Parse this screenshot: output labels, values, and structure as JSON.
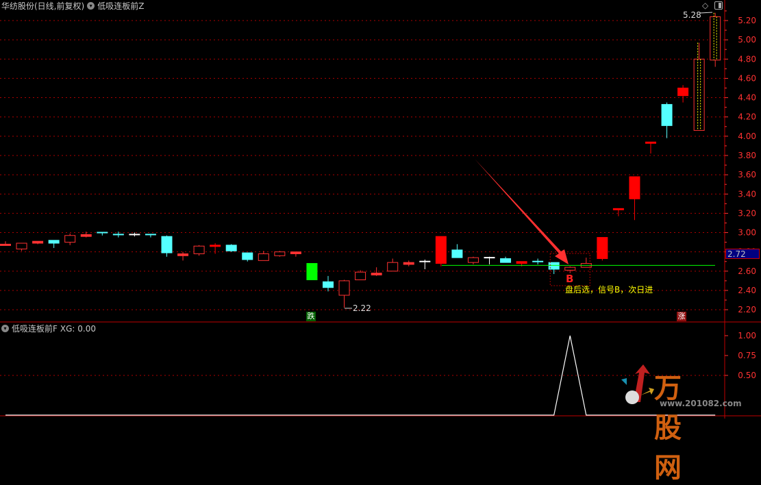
{
  "header": {
    "stock_title": "华纺股份(日线,前复权)",
    "indicator_main": "低吸连板前Z",
    "indicator_sub_label": "低吸连板前F",
    "indicator_sub_value": "XG: 0.00",
    "icons": [
      "diamond-icon",
      "panel-toggle-icon",
      "dropdown-circle-icon"
    ]
  },
  "annotations": {
    "high_label": "5.28",
    "low_label": "2.22",
    "signal_letter": "B",
    "signal_note": "盘后选，信号B，次日进",
    "down_tag": "跌",
    "up_tag": "涨",
    "last_price": "2.72"
  },
  "logo": {
    "name": "万股网",
    "url": "www.201082.com"
  },
  "colors": {
    "up": "#ff3232",
    "down": "#54ffff",
    "flat": "#ffffff",
    "limit_down": "#00ff00",
    "grid": "#b00000",
    "axis_text": "#ff3232",
    "signal_line": "#00ff00",
    "highlight": "#ffff00",
    "last_price_bg": "#000080"
  },
  "chart_data": [
    {
      "type": "candlestick",
      "title": "华纺股份(日线,前复权)",
      "ylim": [
        2.1,
        5.35
      ],
      "yticks": [
        "5.20",
        "5.00",
        "4.80",
        "4.60",
        "4.40",
        "4.20",
        "4.00",
        "3.80",
        "3.60",
        "3.40",
        "3.20",
        "3.00",
        "2.80",
        "2.60",
        "2.40",
        "2.20"
      ],
      "grid": true,
      "candles": [
        {
          "o": 2.88,
          "h": 2.91,
          "l": 2.87,
          "c": 2.88,
          "k": "r"
        },
        {
          "o": 2.83,
          "h": 2.89,
          "l": 2.81,
          "c": 2.89,
          "k": "r"
        },
        {
          "o": 2.89,
          "h": 2.91,
          "l": 2.88,
          "c": 2.91,
          "k": "r"
        },
        {
          "o": 2.92,
          "h": 2.92,
          "l": 2.84,
          "c": 2.89,
          "k": "c"
        },
        {
          "o": 2.9,
          "h": 2.99,
          "l": 2.87,
          "c": 2.97,
          "k": "r"
        },
        {
          "o": 2.96,
          "h": 3.01,
          "l": 2.95,
          "c": 2.98,
          "k": "r"
        },
        {
          "o": 3.0,
          "h": 3.0,
          "l": 2.97,
          "c": 2.99,
          "k": "c"
        },
        {
          "o": 2.98,
          "h": 3.01,
          "l": 2.95,
          "c": 2.97,
          "k": "c"
        },
        {
          "o": 2.98,
          "h": 3.0,
          "l": 2.96,
          "c": 2.98,
          "k": "w"
        },
        {
          "o": 2.98,
          "h": 2.98,
          "l": 2.95,
          "c": 2.97,
          "k": "c"
        },
        {
          "o": 2.96,
          "h": 2.97,
          "l": 2.75,
          "c": 2.79,
          "k": "c"
        },
        {
          "o": 2.76,
          "h": 2.8,
          "l": 2.71,
          "c": 2.78,
          "k": "r"
        },
        {
          "o": 2.78,
          "h": 2.87,
          "l": 2.76,
          "c": 2.86,
          "k": "r"
        },
        {
          "o": 2.86,
          "h": 2.89,
          "l": 2.78,
          "c": 2.87,
          "k": "R"
        },
        {
          "o": 2.87,
          "h": 2.88,
          "l": 2.8,
          "c": 2.81,
          "k": "c"
        },
        {
          "o": 2.79,
          "h": 2.79,
          "l": 2.7,
          "c": 2.72,
          "k": "c"
        },
        {
          "o": 2.71,
          "h": 2.81,
          "l": 2.71,
          "c": 2.78,
          "k": "r"
        },
        {
          "o": 2.76,
          "h": 2.81,
          "l": 2.75,
          "c": 2.8,
          "k": "r"
        },
        {
          "o": 2.78,
          "h": 2.8,
          "l": 2.75,
          "c": 2.8,
          "k": "r"
        },
        {
          "o": 2.68,
          "h": 2.68,
          "l": 2.51,
          "c": 2.51,
          "k": "g"
        },
        {
          "o": 2.49,
          "h": 2.55,
          "l": 2.39,
          "c": 2.43,
          "k": "c"
        },
        {
          "o": 2.35,
          "h": 2.51,
          "l": 2.22,
          "c": 2.5,
          "k": "r"
        },
        {
          "o": 2.51,
          "h": 2.61,
          "l": 2.51,
          "c": 2.59,
          "k": "r"
        },
        {
          "o": 2.56,
          "h": 2.64,
          "l": 2.55,
          "c": 2.58,
          "k": "r"
        },
        {
          "o": 2.6,
          "h": 2.73,
          "l": 2.6,
          "c": 2.69,
          "k": "r"
        },
        {
          "o": 2.67,
          "h": 2.71,
          "l": 2.65,
          "c": 2.69,
          "k": "r"
        },
        {
          "o": 2.7,
          "h": 2.72,
          "l": 2.62,
          "c": 2.7,
          "k": "w"
        },
        {
          "o": 2.68,
          "h": 2.96,
          "l": 2.65,
          "c": 2.96,
          "k": "R"
        },
        {
          "o": 2.82,
          "h": 2.88,
          "l": 2.74,
          "c": 2.74,
          "k": "c"
        },
        {
          "o": 2.69,
          "h": 2.75,
          "l": 2.67,
          "c": 2.74,
          "k": "r"
        },
        {
          "o": 2.74,
          "h": 2.75,
          "l": 2.67,
          "c": 2.74,
          "k": "w"
        },
        {
          "o": 2.73,
          "h": 2.75,
          "l": 2.69,
          "c": 2.69,
          "k": "c"
        },
        {
          "o": 2.68,
          "h": 2.7,
          "l": 2.65,
          "c": 2.7,
          "k": "R"
        },
        {
          "o": 2.7,
          "h": 2.73,
          "l": 2.67,
          "c": 2.7,
          "k": "c"
        },
        {
          "o": 2.69,
          "h": 2.69,
          "l": 2.57,
          "c": 2.62,
          "k": "c"
        },
        {
          "o": 2.61,
          "h": 2.65,
          "l": 2.58,
          "c": 2.64,
          "k": "r"
        },
        {
          "o": 2.64,
          "h": 2.74,
          "l": 2.64,
          "c": 2.68,
          "k": "r"
        },
        {
          "o": 2.73,
          "h": 2.95,
          "l": 2.71,
          "c": 2.95,
          "k": "R"
        },
        {
          "o": 3.25,
          "h": 3.25,
          "l": 3.17,
          "c": 3.25,
          "k": "R"
        },
        {
          "o": 3.35,
          "h": 3.58,
          "l": 3.13,
          "c": 3.58,
          "k": "R"
        },
        {
          "o": 3.94,
          "h": 3.94,
          "l": 3.82,
          "c": 3.94,
          "k": "R"
        },
        {
          "o": 4.33,
          "h": 4.35,
          "l": 3.98,
          "c": 4.11,
          "k": "c"
        },
        {
          "o": 4.42,
          "h": 4.53,
          "l": 4.35,
          "c": 4.5,
          "k": "R"
        },
        {
          "o": 4.06,
          "h": 4.97,
          "l": 4.06,
          "c": 4.8,
          "k": "y"
        },
        {
          "o": 4.79,
          "h": 5.28,
          "l": 4.72,
          "c": 5.24,
          "k": "y"
        }
      ],
      "support_line": 2.66,
      "signal_index": 35
    },
    {
      "type": "line",
      "title": "低吸连板前F",
      "series_label": "XG",
      "ylim": [
        0,
        1.1
      ],
      "yticks": [
        "1.00",
        "0.75",
        "0.50"
      ],
      "values": [
        0,
        0,
        0,
        0,
        0,
        0,
        0,
        0,
        0,
        0,
        0,
        0,
        0,
        0,
        0,
        0,
        0,
        0,
        0,
        0,
        0,
        0,
        0,
        0,
        0,
        0,
        0,
        0,
        0,
        0,
        0,
        0,
        0,
        0,
        0,
        1,
        0,
        0,
        0,
        0,
        0,
        0,
        0,
        0,
        0
      ]
    }
  ]
}
